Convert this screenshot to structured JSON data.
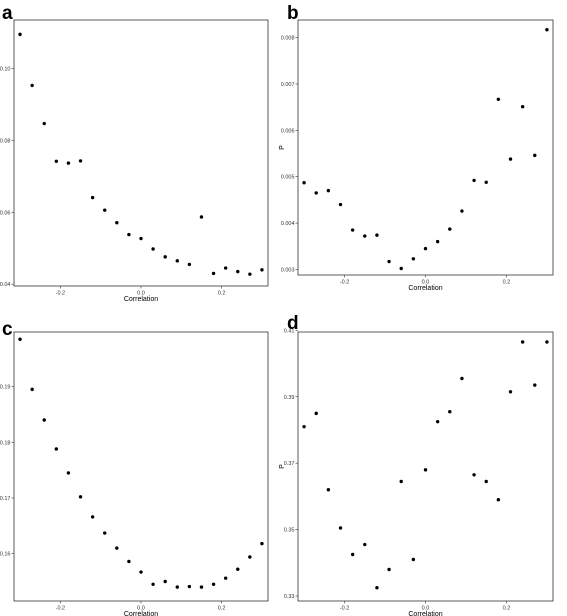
{
  "chart_data": [
    {
      "panel": "a",
      "type": "scatter",
      "xlabel": "Correlation",
      "ylabel": "",
      "xlim": [
        -0.315,
        0.315
      ],
      "ylim": [
        0.0395,
        0.1135
      ],
      "xticks": [
        -0.2,
        0.0,
        0.2
      ],
      "xtick_labels": [
        "-0.2",
        "0.0",
        "0.2"
      ],
      "yticks": [
        0.04,
        0.06,
        0.08,
        0.1
      ],
      "ytick_labels": [
        "0.04",
        "0.06",
        "0.08",
        "0.10"
      ],
      "grid": false,
      "x": [
        -0.3,
        -0.27,
        -0.24,
        -0.21,
        -0.18,
        -0.15,
        -0.12,
        -0.09,
        -0.06,
        -0.03,
        0.0,
        0.03,
        0.06,
        0.09,
        0.12,
        0.15,
        0.18,
        0.21,
        0.24,
        0.27,
        0.3
      ],
      "y": [
        0.1095,
        0.0953,
        0.0847,
        0.0742,
        0.0737,
        0.0743,
        0.0641,
        0.0606,
        0.0571,
        0.0538,
        0.0527,
        0.0498,
        0.0476,
        0.0465,
        0.0455,
        0.0587,
        0.043,
        0.0445,
        0.0435,
        0.0428,
        0.044
      ]
    },
    {
      "panel": "b",
      "type": "scatter",
      "xlabel": "Correlation",
      "ylabel": "P",
      "xlim": [
        -0.315,
        0.315
      ],
      "ylim": [
        0.00288,
        0.00838
      ],
      "xticks": [
        -0.2,
        0.0,
        0.2
      ],
      "xtick_labels": [
        "-0.2",
        "0.0",
        "0.2"
      ],
      "yticks": [
        0.003,
        0.004,
        0.005,
        0.006,
        0.007,
        0.008
      ],
      "ytick_labels": [
        "0.003",
        "0.004",
        "0.005",
        "0.006",
        "0.007",
        "0.008"
      ],
      "grid": false,
      "x": [
        -0.3,
        -0.27,
        -0.24,
        -0.21,
        -0.18,
        -0.15,
        -0.12,
        -0.09,
        -0.06,
        -0.03,
        0.0,
        0.03,
        0.06,
        0.09,
        0.12,
        0.15,
        0.18,
        0.21,
        0.24,
        0.27,
        0.3
      ],
      "y": [
        0.00487,
        0.00465,
        0.0047,
        0.0044,
        0.00385,
        0.00372,
        0.00374,
        0.00317,
        0.00302,
        0.00323,
        0.00345,
        0.0036,
        0.00387,
        0.00426,
        0.00492,
        0.00488,
        0.00667,
        0.00538,
        0.00651,
        0.00546,
        0.00817
      ]
    },
    {
      "panel": "c",
      "type": "scatter",
      "xlabel": "Correlation",
      "ylabel": "",
      "xlim": [
        -0.315,
        0.315
      ],
      "ylim": [
        0.1515,
        0.1998
      ],
      "xticks": [
        -0.2,
        0.0,
        0.2
      ],
      "xtick_labels": [
        "-0.2",
        "0.0",
        "0.2"
      ],
      "yticks": [
        0.16,
        0.17,
        0.18,
        0.19
      ],
      "ytick_labels": [
        "0.16",
        "0.17",
        "0.18",
        "0.19"
      ],
      "grid": false,
      "x": [
        -0.3,
        -0.27,
        -0.24,
        -0.21,
        -0.18,
        -0.15,
        -0.12,
        -0.09,
        -0.06,
        -0.03,
        0.0,
        0.03,
        0.06,
        0.09,
        0.12,
        0.15,
        0.18,
        0.21,
        0.24,
        0.27,
        0.3
      ],
      "y": [
        0.1985,
        0.1895,
        0.184,
        0.1788,
        0.1745,
        0.1702,
        0.1666,
        0.1637,
        0.161,
        0.1586,
        0.1567,
        0.1545,
        0.155,
        0.154,
        0.1541,
        0.154,
        0.1545,
        0.1556,
        0.1572,
        0.1594,
        0.1618
      ]
    },
    {
      "panel": "d",
      "type": "scatter",
      "xlabel": "Correlation",
      "ylabel": "P",
      "xlim": [
        -0.315,
        0.315
      ],
      "ylim": [
        0.3285,
        0.4095
      ],
      "xticks": [
        -0.2,
        0.0,
        0.2
      ],
      "xtick_labels": [
        "-0.2",
        "0.0",
        "0.2"
      ],
      "yticks": [
        0.33,
        0.35,
        0.37,
        0.39,
        0.41
      ],
      "ytick_labels": [
        "0.33",
        "0.35",
        "0.37",
        "0.39",
        "0.41"
      ],
      "grid": false,
      "x": [
        -0.3,
        -0.27,
        -0.24,
        -0.21,
        -0.18,
        -0.15,
        -0.12,
        -0.09,
        -0.06,
        -0.03,
        0.0,
        0.03,
        0.06,
        0.09,
        0.12,
        0.15,
        0.18,
        0.21,
        0.24,
        0.27,
        0.3
      ],
      "y": [
        0.381,
        0.385,
        0.362,
        0.3505,
        0.3425,
        0.3455,
        0.3325,
        0.338,
        0.3645,
        0.341,
        0.368,
        0.3825,
        0.3855,
        0.3955,
        0.3665,
        0.3645,
        0.359,
        0.3915,
        0.4065,
        0.3935,
        0.4065
      ]
    }
  ]
}
